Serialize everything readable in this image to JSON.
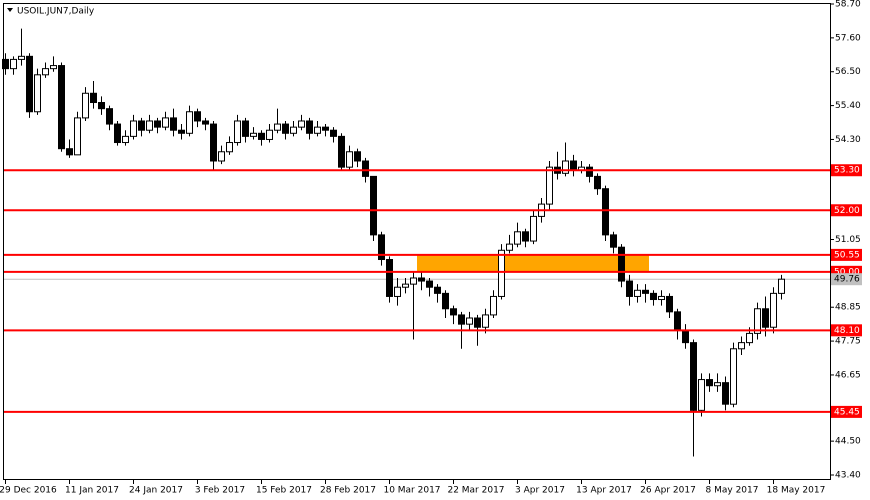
{
  "chart_data": {
    "type": "candlestick",
    "title": "USOIL.JUN7,Daily",
    "categories": [
      "29 Dec 2016",
      null,
      null,
      null,
      null,
      null,
      null,
      null,
      "11 Jan 2017",
      null,
      null,
      null,
      null,
      null,
      null,
      null,
      "24 Jan 2017",
      null,
      null,
      null,
      null,
      null,
      null,
      null,
      "3 Feb 2017",
      null,
      null,
      null,
      null,
      null,
      null,
      null,
      "15 Feb 2017",
      null,
      null,
      null,
      null,
      null,
      null,
      null,
      "28 Feb 2017",
      null,
      null,
      null,
      null,
      null,
      null,
      null,
      "10 Mar 2017",
      null,
      null,
      null,
      null,
      null,
      null,
      null,
      "22 Mar 2017",
      null,
      null,
      null,
      null,
      null,
      null,
      null,
      "3 Apr 2017",
      null,
      null,
      null,
      null,
      null,
      null,
      null,
      "13 Apr 2017",
      null,
      null,
      null,
      null,
      null,
      null,
      null,
      "26 Apr 2017",
      null,
      null,
      null,
      null,
      null,
      null,
      null,
      "8 May 2017",
      null,
      null,
      null,
      null,
      null,
      null,
      null,
      "18 May 2017",
      null
    ],
    "open": [
      56.9,
      56.6,
      56.9,
      57.0,
      55.2,
      56.4,
      56.6,
      56.7,
      54.0,
      53.8,
      55.0,
      55.8,
      55.5,
      55.3,
      54.8,
      54.2,
      54.4,
      54.9,
      54.6,
      54.9,
      54.7,
      55.0,
      54.6,
      54.5,
      55.2,
      54.9,
      54.8,
      53.6,
      53.9,
      54.2,
      54.9,
      54.4,
      54.5,
      54.3,
      54.6,
      54.8,
      54.5,
      54.7,
      54.9,
      54.5,
      54.7,
      54.6,
      54.4,
      53.4,
      53.9,
      53.6,
      53.1,
      51.2,
      50.4,
      49.2,
      49.5,
      49.6,
      49.8,
      49.7,
      49.5,
      49.3,
      48.8,
      48.6,
      48.3,
      48.5,
      48.2,
      48.6,
      49.2,
      50.7,
      50.9,
      51.3,
      51.0,
      51.8,
      52.2,
      53.4,
      53.2,
      53.6,
      53.3,
      53.4,
      53.1,
      52.7,
      51.2,
      50.8,
      49.7,
      49.2,
      49.4,
      49.3,
      49.1,
      49.2,
      48.7,
      48.1,
      47.7,
      45.5,
      46.5,
      46.3,
      46.4,
      45.7,
      47.5,
      47.7,
      48.0,
      48.8,
      48.2,
      49.3
    ],
    "high": [
      57.1,
      57.0,
      57.9,
      57.1,
      56.6,
      56.8,
      57.0,
      56.8,
      54.3,
      55.2,
      56.0,
      56.2,
      55.7,
      55.4,
      54.9,
      54.6,
      55.1,
      55.0,
      55.1,
      55.0,
      55.2,
      55.3,
      54.8,
      55.4,
      55.3,
      55.0,
      54.9,
      54.1,
      54.4,
      55.1,
      55.0,
      54.7,
      54.6,
      54.8,
      55.3,
      54.9,
      54.9,
      55.1,
      55.0,
      54.9,
      54.8,
      54.7,
      54.5,
      54.1,
      54.0,
      53.7,
      53.1,
      51.3,
      50.5,
      49.8,
      49.8,
      50.0,
      50.0,
      49.8,
      49.6,
      49.4,
      48.9,
      48.7,
      48.7,
      48.6,
      48.8,
      49.4,
      50.9,
      51.2,
      51.6,
      51.4,
      52.0,
      52.4,
      53.6,
      53.9,
      54.2,
      53.8,
      53.6,
      53.5,
      53.2,
      52.8,
      51.3,
      50.9,
      49.9,
      49.6,
      49.6,
      49.4,
      49.4,
      49.3,
      48.8,
      48.3,
      47.8,
      46.7,
      46.7,
      46.7,
      46.6,
      47.7,
      47.9,
      48.2,
      49.0,
      49.2,
      49.5,
      49.9
    ],
    "low": [
      56.4,
      56.4,
      56.7,
      55.0,
      55.1,
      56.3,
      56.5,
      53.9,
      53.7,
      53.8,
      54.9,
      55.3,
      55.1,
      54.6,
      54.1,
      54.1,
      54.3,
      54.4,
      54.5,
      54.5,
      54.6,
      54.4,
      54.3,
      54.4,
      54.7,
      54.6,
      53.3,
      53.5,
      53.8,
      54.1,
      54.2,
      54.3,
      54.1,
      54.2,
      54.5,
      54.3,
      54.4,
      54.6,
      54.3,
      54.4,
      54.4,
      54.2,
      53.3,
      53.3,
      53.4,
      52.9,
      51.0,
      50.2,
      49.0,
      48.9,
      49.3,
      47.8,
      49.4,
      49.2,
      49.0,
      48.5,
      48.3,
      47.5,
      48.1,
      47.6,
      48.0,
      48.5,
      49.1,
      50.6,
      50.8,
      50.8,
      50.9,
      51.6,
      52.0,
      53.0,
      53.1,
      53.1,
      53.2,
      52.9,
      52.5,
      51.0,
      50.6,
      49.5,
      48.9,
      49.0,
      49.0,
      48.9,
      48.9,
      48.5,
      47.8,
      47.5,
      44.0,
      45.3,
      46.1,
      46.1,
      45.5,
      45.6,
      47.3,
      47.6,
      47.8,
      47.9,
      48.0,
      49.1
    ],
    "close": [
      56.6,
      56.9,
      57.0,
      55.2,
      56.4,
      56.6,
      56.7,
      54.0,
      53.8,
      55.0,
      55.8,
      55.5,
      55.3,
      54.8,
      54.2,
      54.4,
      54.9,
      54.6,
      54.9,
      54.7,
      55.0,
      54.6,
      54.5,
      55.2,
      54.9,
      54.8,
      53.6,
      53.9,
      54.2,
      54.9,
      54.4,
      54.5,
      54.3,
      54.6,
      54.8,
      54.5,
      54.7,
      54.9,
      54.5,
      54.7,
      54.6,
      54.4,
      53.4,
      53.9,
      53.6,
      53.1,
      51.2,
      50.4,
      49.2,
      49.5,
      49.6,
      49.8,
      49.7,
      49.5,
      49.3,
      48.8,
      48.6,
      48.3,
      48.5,
      48.2,
      48.6,
      49.2,
      50.7,
      50.9,
      51.3,
      51.0,
      51.8,
      52.2,
      53.4,
      53.2,
      53.6,
      53.3,
      53.4,
      53.1,
      52.7,
      51.2,
      50.8,
      49.7,
      49.2,
      49.4,
      49.3,
      49.1,
      49.2,
      48.7,
      48.1,
      47.7,
      45.5,
      46.5,
      46.3,
      46.4,
      45.7,
      47.5,
      47.7,
      48.0,
      48.8,
      48.2,
      49.3,
      49.76
    ],
    "up_color": "#ffffff",
    "down_color": "#000000",
    "ylim": [
      43.4,
      58.7
    ],
    "yticks": [
      {
        "value": 58.7,
        "label": "58.70"
      },
      {
        "value": 57.6,
        "label": "57.60"
      },
      {
        "value": 56.5,
        "label": "56.50"
      },
      {
        "value": 55.4,
        "label": "55.40"
      },
      {
        "value": 54.3,
        "label": "54.30"
      },
      {
        "value": 51.05,
        "label": "51.05"
      },
      {
        "value": 48.85,
        "label": "48.85"
      },
      {
        "value": 47.75,
        "label": "47.75"
      },
      {
        "value": 46.65,
        "label": "46.65"
      },
      {
        "value": 44.5,
        "label": "44.50"
      },
      {
        "value": 43.4,
        "label": "43.40"
      }
    ],
    "levels": [
      {
        "value": 53.3,
        "label": "53.30"
      },
      {
        "value": 52.0,
        "label": "52.00"
      },
      {
        "value": 50.55,
        "label": "50.55"
      },
      {
        "value": 50.0,
        "label": "50.00"
      },
      {
        "value": 48.1,
        "label": "48.10"
      },
      {
        "value": 45.45,
        "label": "45.45"
      }
    ],
    "level_color": "#ff0000",
    "last_price": {
      "value": 49.76,
      "label": "49.76"
    },
    "zone": {
      "ylim": [
        50.0,
        50.55
      ],
      "start": 52,
      "end": 80,
      "color": "#ffa500"
    },
    "grid": false
  }
}
